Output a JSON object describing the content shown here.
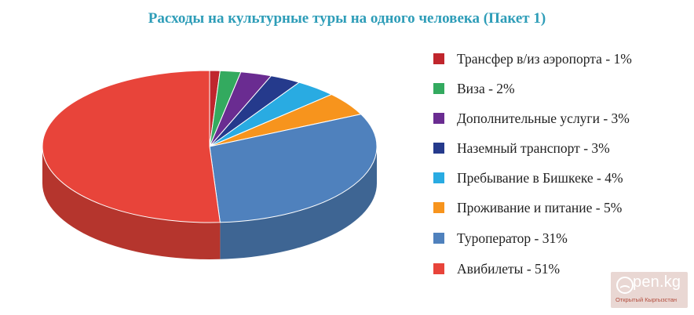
{
  "chart_data": {
    "type": "pie",
    "title": "Расходы на культурные туры на одного человека (Пакет 1)",
    "legend_position": "right",
    "slices": [
      {
        "label": "Трансфер в/из аэропорта - 1%",
        "value": 1,
        "color": "#c0262d"
      },
      {
        "label": "Виза - 2%",
        "value": 2,
        "color": "#33aa5f"
      },
      {
        "label": "Дополнительные услуги - 3%",
        "value": 3,
        "color": "#6a2c91"
      },
      {
        "label": "Наземный транспорт - 3%",
        "value": 3,
        "color": "#253a8c"
      },
      {
        "label": "Пребывание в Бишкеке - 4%",
        "value": 4,
        "color": "#29abe2"
      },
      {
        "label": "Проживание и питание - 5%",
        "value": 5,
        "color": "#f7941d"
      },
      {
        "label": "Туроператор - 31%",
        "value": 31,
        "color": "#4f81bd"
      },
      {
        "label": "Авибилеты - 51%",
        "value": 51,
        "color": "#e8443a"
      }
    ]
  },
  "watermark": {
    "brand": "pen.kg",
    "tagline": "Открытый Кыргызстан"
  }
}
